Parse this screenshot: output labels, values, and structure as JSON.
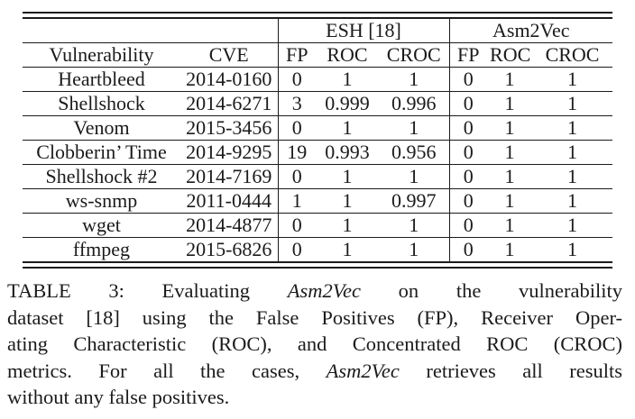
{
  "page": {
    "background_color": "#ffffff",
    "text_color": "#1b1b1b"
  },
  "table": {
    "group_headers": [
      {
        "label": "",
        "span": 2
      },
      {
        "label": "ESH [18]",
        "span": 3
      },
      {
        "label": "Asm2Vec",
        "span": 3
      }
    ],
    "columns": [
      "Vulnerability",
      "CVE",
      "FP",
      "ROC",
      "CROC",
      "FP",
      "ROC",
      "CROC"
    ],
    "rows": [
      [
        "Heartbleed",
        "2014-0160",
        "0",
        "1",
        "1",
        "0",
        "1",
        "1"
      ],
      [
        "Shellshock",
        "2014-6271",
        "3",
        "0.999",
        "0.996",
        "0",
        "1",
        "1"
      ],
      [
        "Venom",
        "2015-3456",
        "0",
        "1",
        "1",
        "0",
        "1",
        "1"
      ],
      [
        "Clobberin’ Time",
        "2014-9295",
        "19",
        "0.993",
        "0.956",
        "0",
        "1",
        "1"
      ],
      [
        "Shellshock #2",
        "2014-7169",
        "0",
        "1",
        "1",
        "0",
        "1",
        "1"
      ],
      [
        "ws-snmp",
        "2011-0444",
        "1",
        "1",
        "0.997",
        "0",
        "1",
        "1"
      ],
      [
        "wget",
        "2014-4877",
        "0",
        "1",
        "1",
        "0",
        "1",
        "1"
      ],
      [
        "ffmpeg",
        "2015-6826",
        "0",
        "1",
        "1",
        "0",
        "1",
        "1"
      ]
    ]
  },
  "caption": {
    "lines": [
      [
        {
          "t": "TABLE 3: Evaluating "
        },
        {
          "t": "Asm2Vec",
          "i": true
        },
        {
          "t": " on the vulnerability"
        }
      ],
      [
        {
          "t": "dataset [18] using the False Positives (FP), Receiver Oper-"
        }
      ],
      [
        {
          "t": "ating Characteristic (ROC), and Concentrated ROC (CROC)"
        }
      ],
      [
        {
          "t": "metrics. For all the cases, "
        },
        {
          "t": "Asm2Vec",
          "i": true
        },
        {
          "t": " retrieves all results"
        }
      ],
      [
        {
          "t": "without any false positives."
        }
      ]
    ]
  }
}
